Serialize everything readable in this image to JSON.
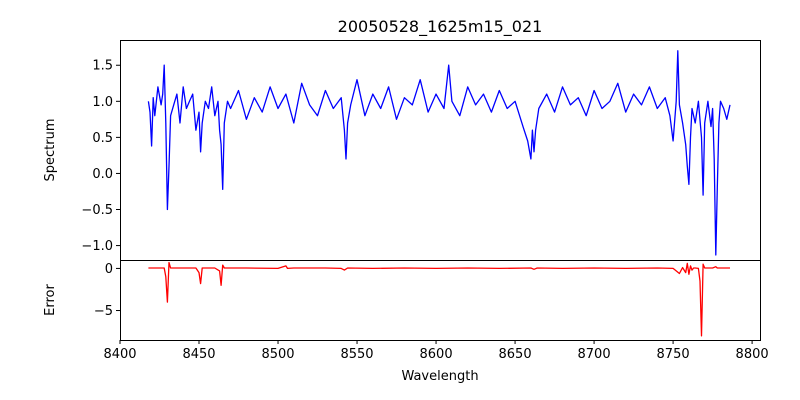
{
  "chart_data": [
    {
      "type": "line",
      "panel": "spectrum",
      "title": "20050528_1625m15_021",
      "xlabel": "",
      "ylabel": "Spectrum",
      "xlim": [
        8400,
        8805
      ],
      "ylim": [
        -1.2,
        1.85
      ],
      "yticks": [
        -1.0,
        -0.5,
        0.0,
        0.5,
        1.0,
        1.5
      ],
      "ytick_labels": [
        "−1.0",
        "−0.5",
        "0.0",
        "0.5",
        "1.0",
        "1.5"
      ],
      "color": "#0000ff",
      "series": [
        {
          "x": [
            8418,
            8419,
            8420,
            8421,
            8422,
            8424,
            8426,
            8427,
            8428,
            8429,
            8430,
            8431,
            8432,
            8434,
            8436,
            8438,
            8440,
            8442,
            8444,
            8446,
            8448,
            8450,
            8451,
            8452,
            8454,
            8456,
            8458,
            8460,
            8462,
            8463,
            8464,
            8465,
            8466,
            8468,
            8470,
            8475,
            8480,
            8485,
            8490,
            8495,
            8500,
            8505,
            8510,
            8515,
            8520,
            8525,
            8530,
            8535,
            8540,
            8542,
            8543,
            8544,
            8546,
            8550,
            8555,
            8560,
            8565,
            8570,
            8575,
            8580,
            8585,
            8590,
            8595,
            8600,
            8605,
            8608,
            8610,
            8615,
            8620,
            8625,
            8630,
            8635,
            8640,
            8645,
            8650,
            8655,
            8658,
            8660,
            8661,
            8662,
            8663,
            8665,
            8670,
            8675,
            8680,
            8685,
            8690,
            8695,
            8700,
            8705,
            8710,
            8715,
            8720,
            8725,
            8730,
            8735,
            8740,
            8745,
            8748,
            8750,
            8752,
            8753,
            8754,
            8756,
            8758,
            8759,
            8760,
            8761,
            8762,
            8764,
            8766,
            8768,
            8769,
            8770,
            8772,
            8774,
            8775,
            8776,
            8777,
            8778,
            8779,
            8780,
            8782,
            8784,
            8786
          ],
          "y": [
            1.0,
            0.85,
            0.38,
            1.05,
            0.8,
            1.2,
            0.95,
            1.1,
            1.5,
            0.7,
            -0.5,
            0.1,
            0.8,
            0.95,
            1.1,
            0.7,
            1.2,
            0.9,
            1.0,
            1.1,
            0.6,
            0.85,
            0.3,
            0.7,
            1.0,
            0.9,
            1.2,
            0.8,
            1.0,
            0.6,
            0.4,
            -0.22,
            0.7,
            1.0,
            0.9,
            1.15,
            0.75,
            1.05,
            0.85,
            1.2,
            0.9,
            1.1,
            0.7,
            1.25,
            0.95,
            0.8,
            1.15,
            0.9,
            1.05,
            0.6,
            0.2,
            0.7,
            0.95,
            1.3,
            0.8,
            1.1,
            0.9,
            1.2,
            0.75,
            1.05,
            0.95,
            1.3,
            0.85,
            1.1,
            0.9,
            1.5,
            1.0,
            0.8,
            1.2,
            0.95,
            1.1,
            0.85,
            1.15,
            0.9,
            1.0,
            0.65,
            0.45,
            0.2,
            0.6,
            0.3,
            0.6,
            0.9,
            1.1,
            0.85,
            1.2,
            0.95,
            1.05,
            0.8,
            1.15,
            0.9,
            1.0,
            1.25,
            0.85,
            1.1,
            0.95,
            1.2,
            0.9,
            1.05,
            0.8,
            0.45,
            1.0,
            1.7,
            0.95,
            0.7,
            0.4,
            0.1,
            -0.15,
            0.5,
            0.9,
            0.7,
            1.0,
            0.5,
            -0.3,
            0.7,
            1.0,
            0.65,
            0.9,
            0.2,
            -1.13,
            -0.2,
            0.7,
            1.0,
            0.9,
            0.75,
            0.95
          ]
        }
      ]
    },
    {
      "type": "line",
      "panel": "error",
      "title": "",
      "xlabel": "Wavelength",
      "ylabel": "Error",
      "xlim": [
        8400,
        8805
      ],
      "ylim": [
        -8.5,
        1.0
      ],
      "xticks": [
        8400,
        8450,
        8500,
        8550,
        8600,
        8650,
        8700,
        8750,
        8800
      ],
      "yticks": [
        0,
        -5
      ],
      "ytick_labels": [
        "0",
        "−5"
      ],
      "color": "#ff0000",
      "series": [
        {
          "x": [
            8418,
            8425,
            8428,
            8429,
            8430,
            8431,
            8432,
            8440,
            8448,
            8450,
            8451,
            8452,
            8455,
            8460,
            8463,
            8464,
            8465,
            8466,
            8470,
            8480,
            8500,
            8505,
            8506,
            8510,
            8530,
            8540,
            8542,
            8544,
            8560,
            8580,
            8600,
            8620,
            8640,
            8660,
            8662,
            8664,
            8680,
            8700,
            8720,
            8740,
            8750,
            8752,
            8754,
            8756,
            8758,
            8759,
            8760,
            8761,
            8762,
            8763,
            8764,
            8766,
            8767,
            8768,
            8769,
            8770,
            8772,
            8775,
            8777,
            8778,
            8780,
            8786
          ],
          "y": [
            0.05,
            0.05,
            0.05,
            -1.0,
            -4.0,
            0.7,
            0.05,
            0.05,
            0.05,
            -0.5,
            -1.8,
            0.05,
            0.05,
            0.05,
            -0.3,
            -2.0,
            0.4,
            0.05,
            0.05,
            0.05,
            0.0,
            0.3,
            0.0,
            0.05,
            0.05,
            0.0,
            -0.2,
            0.05,
            0.0,
            0.05,
            0.0,
            0.05,
            0.0,
            0.05,
            -0.1,
            0.05,
            0.0,
            0.05,
            0.0,
            0.05,
            0.0,
            -0.3,
            -0.6,
            0.1,
            -0.5,
            0.6,
            -0.7,
            0.3,
            -0.2,
            0.05,
            0.05,
            0.0,
            -1.5,
            -8.0,
            0.5,
            0.05,
            0.05,
            0.05,
            0.2,
            0.05,
            0.05,
            0.05
          ]
        }
      ]
    }
  ]
}
